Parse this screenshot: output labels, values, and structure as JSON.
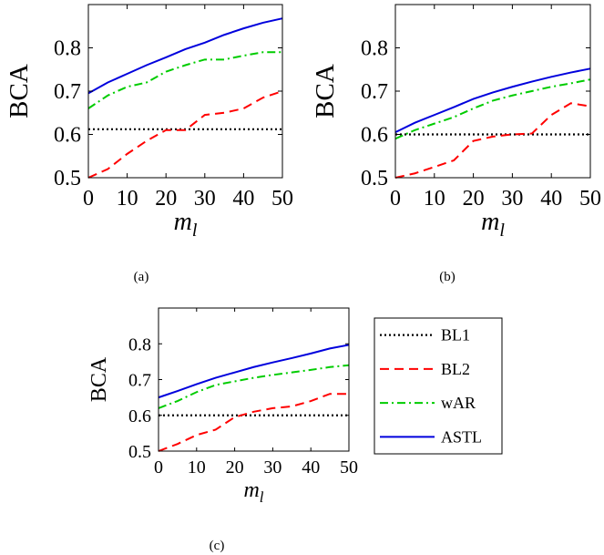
{
  "chart_data": [
    {
      "type": "line",
      "caption": "(a)",
      "xlabel": "m",
      "xlabel_sub": "l",
      "ylabel": "BCA",
      "xlim": [
        0,
        50
      ],
      "ylim": [
        0.5,
        0.9
      ],
      "xticks": [
        0,
        10,
        20,
        30,
        40,
        50
      ],
      "yticks": [
        0.5,
        0.6,
        0.7,
        0.8
      ],
      "x": [
        0,
        5,
        10,
        15,
        20,
        25,
        30,
        35,
        40,
        45,
        50
      ],
      "series": [
        {
          "name": "BL1",
          "values": [
            0.612,
            0.612,
            0.612,
            0.612,
            0.612,
            0.612,
            0.612,
            0.612,
            0.612,
            0.612,
            0.612
          ]
        },
        {
          "name": "BL2",
          "values": [
            0.5,
            0.52,
            0.555,
            0.585,
            0.61,
            0.61,
            0.645,
            0.65,
            0.66,
            0.685,
            0.7
          ]
        },
        {
          "name": "wAR",
          "values": [
            0.66,
            0.69,
            0.71,
            0.72,
            0.745,
            0.76,
            0.773,
            0.773,
            0.782,
            0.79,
            0.79
          ]
        },
        {
          "name": "ASTL",
          "values": [
            0.695,
            0.72,
            0.74,
            0.76,
            0.778,
            0.797,
            0.812,
            0.83,
            0.845,
            0.858,
            0.868
          ]
        }
      ]
    },
    {
      "type": "line",
      "caption": "(b)",
      "xlabel": "m",
      "xlabel_sub": "l",
      "ylabel": "BCA",
      "xlim": [
        0,
        50
      ],
      "ylim": [
        0.5,
        0.9
      ],
      "xticks": [
        0,
        10,
        20,
        30,
        40,
        50
      ],
      "yticks": [
        0.5,
        0.6,
        0.7,
        0.8
      ],
      "x": [
        0,
        5,
        10,
        15,
        20,
        25,
        30,
        35,
        40,
        45,
        50
      ],
      "series": [
        {
          "name": "BL1",
          "values": [
            0.6,
            0.6,
            0.6,
            0.6,
            0.6,
            0.6,
            0.6,
            0.6,
            0.6,
            0.6,
            0.6
          ]
        },
        {
          "name": "BL2",
          "values": [
            0.5,
            0.51,
            0.525,
            0.54,
            0.585,
            0.595,
            0.6,
            0.602,
            0.645,
            0.672,
            0.665
          ]
        },
        {
          "name": "wAR",
          "values": [
            0.59,
            0.61,
            0.625,
            0.64,
            0.66,
            0.678,
            0.69,
            0.7,
            0.71,
            0.718,
            0.727
          ]
        },
        {
          "name": "ASTL",
          "values": [
            0.605,
            0.627,
            0.645,
            0.663,
            0.682,
            0.697,
            0.71,
            0.722,
            0.733,
            0.743,
            0.752
          ]
        }
      ]
    },
    {
      "type": "line",
      "caption": "(c)",
      "xlabel": "m",
      "xlabel_sub": "l",
      "ylabel": "BCA",
      "xlim": [
        0,
        50
      ],
      "ylim": [
        0.5,
        0.9
      ],
      "xticks": [
        0,
        10,
        20,
        30,
        40,
        50
      ],
      "yticks": [
        0.5,
        0.6,
        0.7,
        0.8
      ],
      "x": [
        0,
        5,
        10,
        15,
        20,
        25,
        30,
        35,
        40,
        45,
        50
      ],
      "legend": "right",
      "series": [
        {
          "name": "BL1",
          "values": [
            0.6,
            0.6,
            0.6,
            0.6,
            0.6,
            0.6,
            0.6,
            0.6,
            0.6,
            0.6,
            0.6
          ]
        },
        {
          "name": "BL2",
          "values": [
            0.5,
            0.52,
            0.545,
            0.56,
            0.595,
            0.61,
            0.62,
            0.625,
            0.64,
            0.66,
            0.66
          ]
        },
        {
          "name": "wAR",
          "values": [
            0.62,
            0.64,
            0.665,
            0.685,
            0.695,
            0.705,
            0.713,
            0.72,
            0.727,
            0.735,
            0.74
          ]
        },
        {
          "name": "ASTL",
          "values": [
            0.65,
            0.668,
            0.687,
            0.705,
            0.72,
            0.735,
            0.748,
            0.76,
            0.773,
            0.787,
            0.797
          ]
        }
      ]
    }
  ],
  "legend": {
    "items": [
      {
        "label": "BL1",
        "color": "#000000",
        "dash": "dotted"
      },
      {
        "label": "BL2",
        "color": "#ff0000",
        "dash": "dashed"
      },
      {
        "label": "wAR",
        "color": "#00cc00",
        "dash": "dashdot"
      },
      {
        "label": "ASTL",
        "color": "#0000dd",
        "dash": "solid"
      }
    ]
  },
  "series_styles": {
    "BL1": {
      "color": "#000000",
      "dash": "dotted"
    },
    "BL2": {
      "color": "#ff0000",
      "dash": "dashed"
    },
    "wAR": {
      "color": "#00cc00",
      "dash": "dashdot"
    },
    "ASTL": {
      "color": "#0000dd",
      "dash": "solid"
    }
  }
}
